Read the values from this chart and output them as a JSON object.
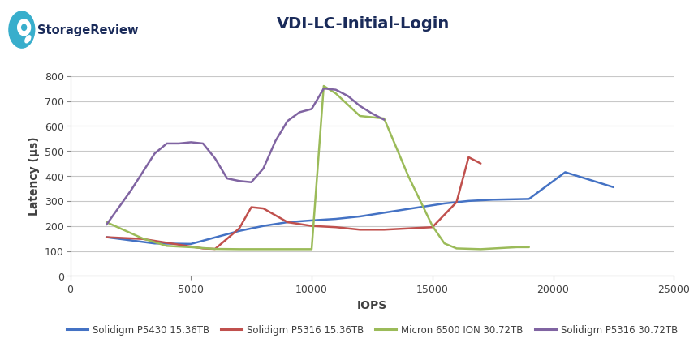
{
  "title": "VDI-LC-Initial-Login",
  "xlabel": "IOPS",
  "ylabel": "Latency (μs)",
  "xlim": [
    0,
    25000
  ],
  "ylim": [
    0,
    800
  ],
  "xticks": [
    0,
    5000,
    10000,
    15000,
    20000,
    25000
  ],
  "yticks": [
    0,
    100,
    200,
    300,
    400,
    500,
    600,
    700,
    800
  ],
  "series": [
    {
      "label": "Solidigm P5430 15.36TB",
      "color": "#4472C4",
      "x": [
        1500,
        3500,
        5000,
        7000,
        8000,
        9000,
        10000,
        11000,
        12000,
        14000,
        15500,
        16500,
        17500,
        19000,
        20500,
        22500
      ],
      "y": [
        155,
        130,
        128,
        180,
        200,
        215,
        222,
        228,
        238,
        268,
        290,
        300,
        305,
        308,
        415,
        355
      ]
    },
    {
      "label": "Solidigm P5316 15.36TB",
      "color": "#C0504D",
      "x": [
        1500,
        3000,
        4500,
        5500,
        6000,
        7000,
        7500,
        8000,
        9000,
        10000,
        11000,
        12000,
        13000,
        14000,
        15000,
        16000,
        16500,
        17000
      ],
      "y": [
        155,
        148,
        125,
        110,
        108,
        190,
        275,
        270,
        215,
        200,
        195,
        185,
        185,
        190,
        195,
        295,
        475,
        450
      ]
    },
    {
      "label": "Micron 6500 ION 30.72TB",
      "color": "#9BBB59",
      "x": [
        1500,
        3000,
        4000,
        5000,
        6000,
        7000,
        8000,
        9000,
        10000,
        10500,
        11000,
        12000,
        13000,
        14000,
        15000,
        15500,
        16000,
        17000,
        18500,
        19000
      ],
      "y": [
        215,
        150,
        120,
        115,
        108,
        107,
        107,
        107,
        107,
        760,
        730,
        640,
        630,
        400,
        200,
        130,
        110,
        107,
        115,
        115
      ]
    },
    {
      "label": "Solidigm P5316 30.72TB",
      "color": "#8064A2",
      "x": [
        1500,
        2500,
        3500,
        4000,
        4500,
        5000,
        5500,
        6000,
        6500,
        7000,
        7500,
        8000,
        8500,
        9000,
        9500,
        10000,
        10500,
        11000,
        11500,
        12000,
        12500,
        13000
      ],
      "y": [
        205,
        340,
        490,
        530,
        530,
        535,
        530,
        470,
        390,
        380,
        375,
        430,
        540,
        620,
        655,
        668,
        750,
        745,
        720,
        680,
        650,
        625
      ]
    }
  ],
  "logo_text": "StorageReview",
  "logo_color": "#38AECC",
  "logo_text_color": "#1A2B5A",
  "background_color": "#FFFFFF",
  "plot_bg_color": "#FFFFFF",
  "grid_color": "#C8C8C8",
  "title_fontsize": 14,
  "axis_label_fontsize": 10,
  "tick_fontsize": 9,
  "legend_fontsize": 8.5,
  "title_color": "#1A2B5A"
}
